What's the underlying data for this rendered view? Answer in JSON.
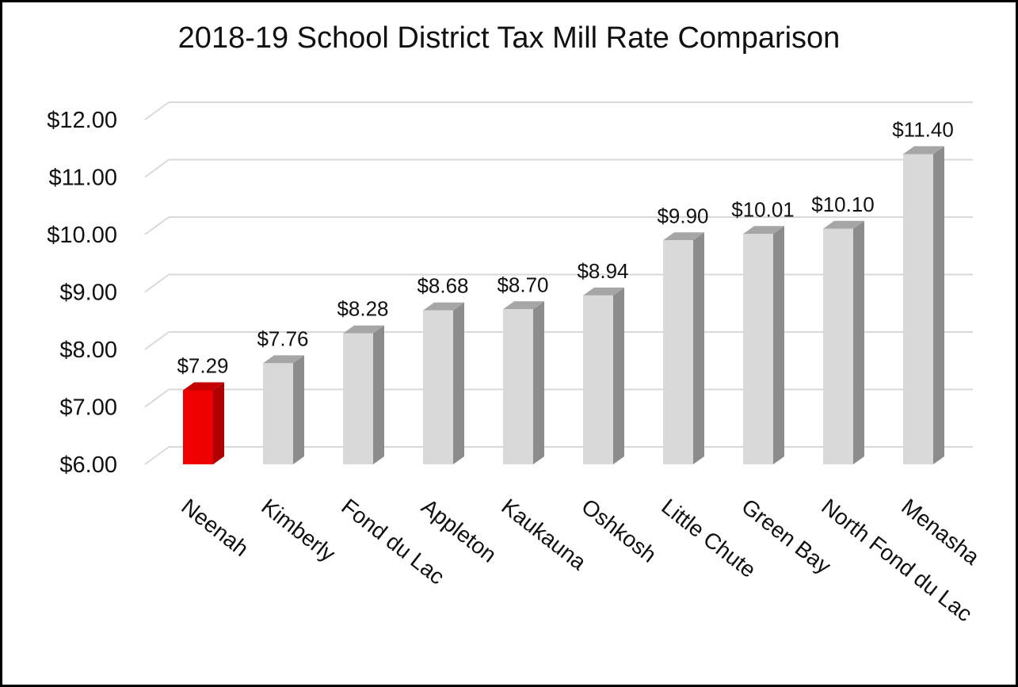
{
  "chart_data": {
    "type": "bar",
    "title": "2018-19 School District Tax Mill Rate Comparison",
    "xlabel": "",
    "ylabel": "",
    "categories": [
      "Neenah",
      "Kimberly",
      "Fond du Lac",
      "Appleton",
      "Kaukauna",
      "Oshkosh",
      "Little Chute",
      "Green Bay",
      "North Fond du Lac",
      "Menasha"
    ],
    "values": [
      7.29,
      7.76,
      8.28,
      8.68,
      8.7,
      8.94,
      9.9,
      10.01,
      10.1,
      11.4
    ],
    "data_labels": [
      "$7.29",
      "$7.76",
      "$8.28",
      "$8.68",
      "$8.70",
      "$8.94",
      "$9.90",
      "$10.01",
      "$10.10",
      "$11.40"
    ],
    "y_ticks": [
      6,
      7,
      8,
      9,
      10,
      11,
      12
    ],
    "y_tick_labels": [
      "$6.00",
      "$7.00",
      "$8.00",
      "$9.00",
      "$10.00",
      "$11.00",
      "$12.00"
    ],
    "ylim": [
      6,
      12
    ],
    "grid": true,
    "legend": "none",
    "style": "3d-column",
    "colors": {
      "highlight": "#ee0000",
      "highlight_side": "#b00000",
      "highlight_top": "#c40000",
      "bar": "#d9d9d9",
      "bar_side": "#8c8c8c",
      "bar_top": "#a6a6a6",
      "grid": "#d9d9d9"
    },
    "highlight_index": 0
  }
}
